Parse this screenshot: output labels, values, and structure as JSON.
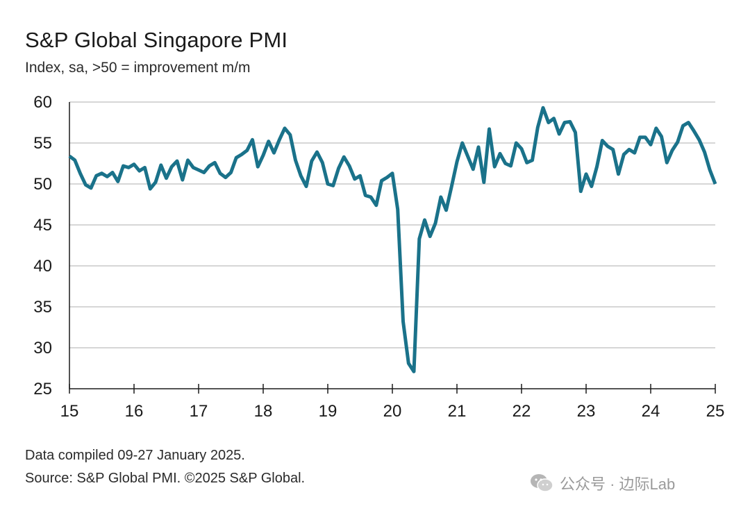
{
  "header": {
    "title": "S&P Global Singapore PMI",
    "subtitle": "Index, sa, >50 = improvement m/m"
  },
  "footer": {
    "compiled": "Data compiled 09-27 January 2025.",
    "source": "Source: S&P Global PMI. ©2025 S&P Global."
  },
  "watermark": {
    "text": "公众号 · 边际Lab",
    "icon": "wechat-icon"
  },
  "colors": {
    "line": "#1a728a",
    "grid": "#c8c8c8",
    "axis": "#1a1a1a"
  },
  "chart_data": {
    "type": "line",
    "title": "S&P Global Singapore PMI",
    "subtitle": "Index, sa, >50 = improvement m/m",
    "xlabel": "",
    "ylabel": "",
    "xlim": [
      15,
      25
    ],
    "ylim": [
      25,
      60
    ],
    "x_ticks": [
      "15",
      "16",
      "17",
      "18",
      "19",
      "20",
      "21",
      "22",
      "23",
      "24",
      "25"
    ],
    "y_ticks": [
      "25",
      "30",
      "35",
      "40",
      "45",
      "50",
      "55",
      "60"
    ],
    "grid": true,
    "series": [
      {
        "name": "Singapore PMI",
        "x_start": 15,
        "step": 0.08333333,
        "values": [
          53.4,
          52.9,
          51.3,
          49.9,
          49.5,
          51.0,
          51.3,
          50.9,
          51.4,
          50.3,
          52.2,
          52.0,
          52.4,
          51.6,
          52.0,
          49.4,
          50.2,
          52.3,
          50.7,
          52.1,
          52.8,
          50.5,
          52.9,
          52.0,
          51.7,
          51.4,
          52.2,
          52.6,
          51.3,
          50.8,
          51.4,
          53.2,
          53.6,
          54.1,
          55.4,
          52.1,
          53.5,
          55.2,
          53.8,
          55.4,
          56.8,
          56.0,
          52.9,
          51.0,
          49.7,
          52.8,
          53.9,
          52.6,
          50.0,
          49.8,
          51.9,
          53.3,
          52.2,
          50.6,
          51.0,
          48.6,
          48.4,
          47.4,
          50.4,
          50.8,
          51.3,
          46.9,
          33.2,
          28.1,
          27.1,
          43.3,
          45.6,
          43.6,
          45.2,
          48.4,
          46.8,
          49.7,
          52.7,
          55.0,
          53.4,
          51.8,
          54.5,
          50.2,
          56.7,
          52.1,
          53.7,
          52.5,
          52.2,
          55.0,
          54.3,
          52.6,
          52.9,
          56.9,
          59.3,
          57.5,
          58.0,
          56.1,
          57.5,
          57.6,
          56.3,
          49.1,
          51.2,
          49.7,
          52.1,
          55.3,
          54.6,
          54.2,
          51.2,
          53.6,
          54.2,
          53.8,
          55.7,
          55.7,
          54.8,
          56.8,
          55.8,
          52.6,
          54.1,
          55.1,
          57.1,
          57.5,
          56.5,
          55.4,
          53.9,
          51.7,
          50.0
        ]
      }
    ]
  }
}
